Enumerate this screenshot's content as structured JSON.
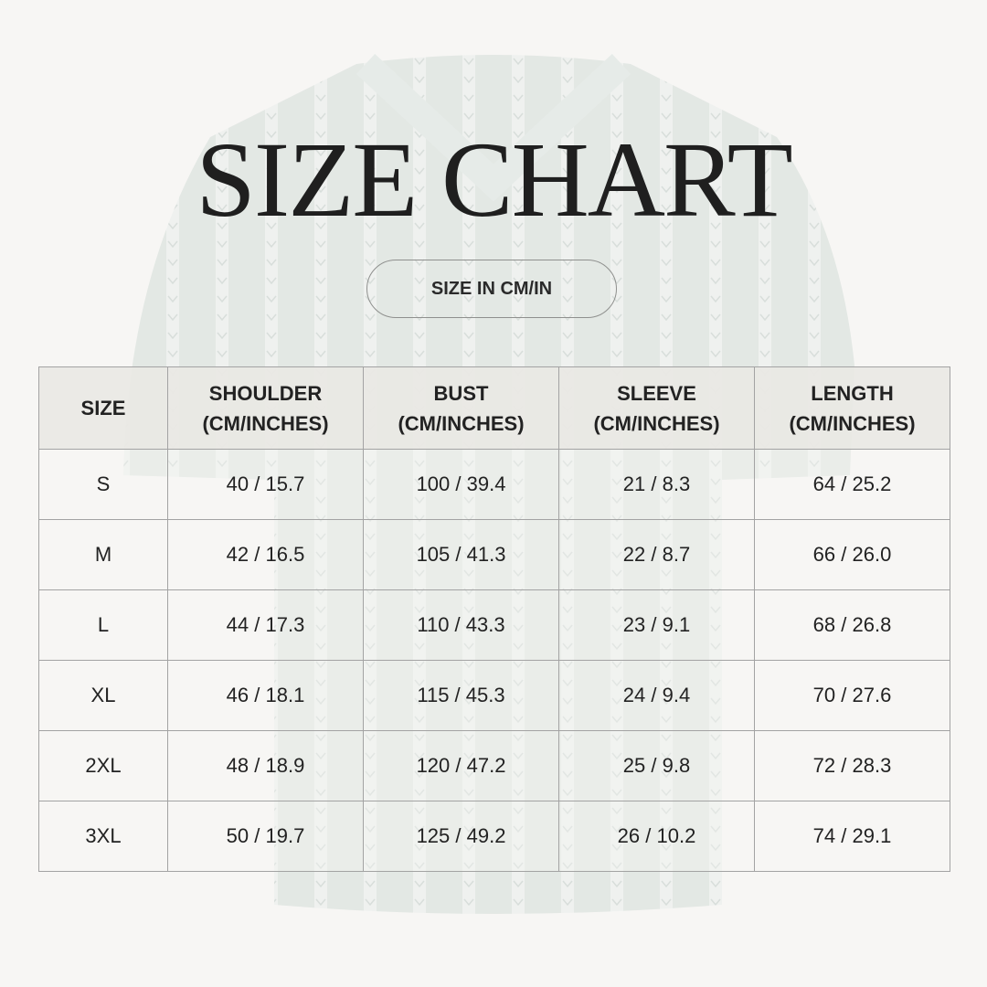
{
  "title": "SIZE CHART",
  "unit_button": "SIZE IN CM/IN",
  "colors": {
    "background": "#f7f6f4",
    "header": "#e9e8e4",
    "shirt": "#dfe5e1",
    "text": "#222222"
  },
  "table": {
    "headers": [
      [
        "SIZE",
        ""
      ],
      [
        "SHOULDER",
        "(CM/INCHES)"
      ],
      [
        "BUST",
        "(CM/INCHES)"
      ],
      [
        "SLEEVE",
        "(CM/INCHES)"
      ],
      [
        "LENGTH",
        "(CM/INCHES)"
      ]
    ],
    "rows": [
      [
        "S",
        "40 / 15.7",
        "100 / 39.4",
        "21 / 8.3",
        "64 / 25.2"
      ],
      [
        "M",
        "42 / 16.5",
        "105 / 41.3",
        "22 / 8.7",
        "66 / 26.0"
      ],
      [
        "L",
        "44 / 17.3",
        "110 / 43.3",
        "23 / 9.1",
        "68 / 26.8"
      ],
      [
        "XL",
        "46 / 18.1",
        "115 / 45.3",
        "24 / 9.4",
        "70 / 27.6"
      ],
      [
        "2XL",
        "48 / 18.9",
        "120 / 47.2",
        "25 / 9.8",
        "72 / 28.3"
      ],
      [
        "3XL",
        "50 / 19.7",
        "125 / 49.2",
        "26 / 10.2",
        "74 / 29.1"
      ]
    ]
  }
}
